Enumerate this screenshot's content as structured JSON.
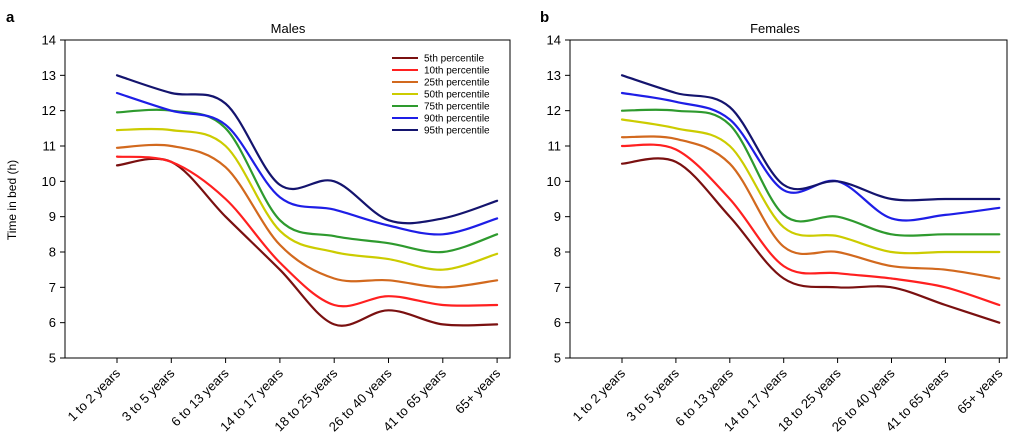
{
  "chart_data": [
    {
      "type": "line",
      "panel": "a",
      "title": "Males",
      "xlabel": "",
      "ylabel": "Time in bed (h)",
      "ylim": [
        5,
        14
      ],
      "yticks": [
        5,
        6,
        7,
        8,
        9,
        10,
        11,
        12,
        13,
        14
      ],
      "categories": [
        "1 to 2 years",
        "3 to 5 years",
        "6 to 13 years",
        "14 to 17 years",
        "18 to 25 years",
        "26 to 40 years",
        "41 to 65 years",
        "65+ years"
      ],
      "legend_position": "top-right",
      "series": [
        {
          "name": "5th percentile",
          "color": "#7a1010",
          "values": [
            10.45,
            10.55,
            9.0,
            7.5,
            5.95,
            6.35,
            5.95,
            5.95
          ]
        },
        {
          "name": "10th percentile",
          "color": "#ff2020",
          "values": [
            10.7,
            10.55,
            9.5,
            7.7,
            6.5,
            6.75,
            6.5,
            6.5
          ]
        },
        {
          "name": "25th percentile",
          "color": "#d2691e",
          "values": [
            10.95,
            11.0,
            10.4,
            8.2,
            7.25,
            7.2,
            7.0,
            7.2
          ]
        },
        {
          "name": "50th percentile",
          "color": "#cccc00",
          "values": [
            11.45,
            11.45,
            11.0,
            8.6,
            8.0,
            7.8,
            7.5,
            7.95
          ]
        },
        {
          "name": "75th percentile",
          "color": "#2e9a2e",
          "values": [
            11.95,
            12.0,
            11.5,
            8.9,
            8.45,
            8.25,
            8.0,
            8.5
          ]
        },
        {
          "name": "90th percentile",
          "color": "#1e1ee6",
          "values": [
            12.5,
            12.0,
            11.6,
            9.55,
            9.2,
            8.75,
            8.5,
            8.95
          ]
        },
        {
          "name": "95th percentile",
          "color": "#14146e",
          "values": [
            13.0,
            12.5,
            12.2,
            9.9,
            10.0,
            8.9,
            8.95,
            9.45
          ]
        }
      ]
    },
    {
      "type": "line",
      "panel": "b",
      "title": "Females",
      "xlabel": "",
      "ylabel": "",
      "ylim": [
        5,
        14
      ],
      "yticks": [
        5,
        6,
        7,
        8,
        9,
        10,
        11,
        12,
        13,
        14
      ],
      "categories": [
        "1 to 2 years",
        "3 to 5 years",
        "6 to 13 years",
        "14 to 17 years",
        "18 to 25 years",
        "26 to 40 years",
        "41 to 65 years",
        "65+ years"
      ],
      "series": [
        {
          "name": "5th percentile",
          "color": "#7a1010",
          "values": [
            10.5,
            10.55,
            9.0,
            7.25,
            7.0,
            7.0,
            6.5,
            6.0
          ]
        },
        {
          "name": "10th percentile",
          "color": "#ff2020",
          "values": [
            11.0,
            10.9,
            9.5,
            7.6,
            7.4,
            7.25,
            7.0,
            6.5
          ]
        },
        {
          "name": "25th percentile",
          "color": "#d2691e",
          "values": [
            11.25,
            11.2,
            10.5,
            8.15,
            8.0,
            7.6,
            7.5,
            7.25
          ]
        },
        {
          "name": "50th percentile",
          "color": "#cccc00",
          "values": [
            11.75,
            11.5,
            11.0,
            8.7,
            8.45,
            8.0,
            8.0,
            8.0
          ]
        },
        {
          "name": "75th percentile",
          "color": "#2e9a2e",
          "values": [
            12.0,
            12.0,
            11.6,
            9.05,
            9.0,
            8.5,
            8.5,
            8.5
          ]
        },
        {
          "name": "90th percentile",
          "color": "#1e1ee6",
          "values": [
            12.5,
            12.25,
            11.75,
            9.75,
            10.0,
            8.95,
            9.05,
            9.25
          ]
        },
        {
          "name": "95th percentile",
          "color": "#14146e",
          "values": [
            13.0,
            12.5,
            12.1,
            9.9,
            10.0,
            9.5,
            9.5,
            9.5
          ]
        }
      ]
    }
  ]
}
